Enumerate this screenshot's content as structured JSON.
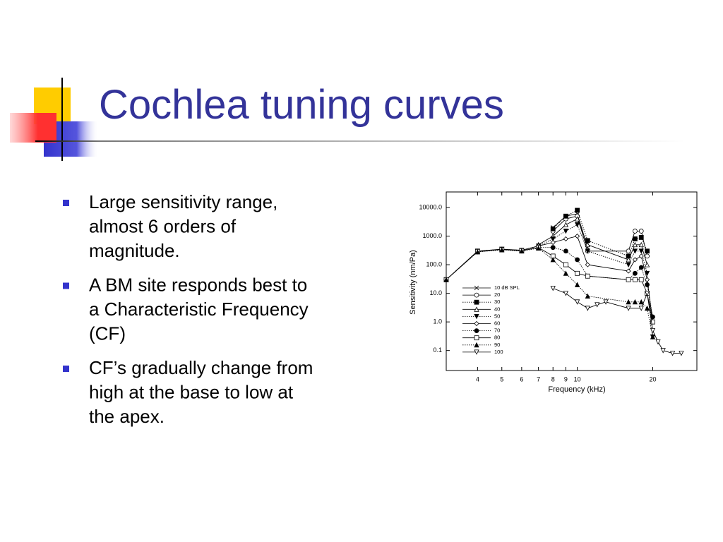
{
  "slide": {
    "title": "Cochlea tuning curves",
    "bullets": [
      [
        "Large sensitivity range,",
        "almost 6 orders of",
        "magnitude."
      ],
      [
        "A BM site responds best to",
        "a Characteristic Frequency",
        "(CF)"
      ],
      [
        "CF’s gradually change from",
        "high at the base to low at",
        "the apex."
      ]
    ]
  },
  "chart_data": {
    "type": "line",
    "x_label": "Frequency (kHz)",
    "y_label": "Sensitivity (nm/Pa)",
    "xlog": true,
    "ylog": true,
    "xlim": [
      3,
      30
    ],
    "ylim": [
      0.02,
      35000
    ],
    "xticks": [
      4,
      5,
      6,
      7,
      8,
      9,
      10,
      20
    ],
    "yticks": [
      {
        "value": 10000,
        "label": "10000.0"
      },
      {
        "value": 1000,
        "label": "1000.0"
      },
      {
        "value": 100,
        "label": "100.0"
      },
      {
        "value": 10,
        "label": "10.0"
      },
      {
        "value": 1,
        "label": "1.0"
      },
      {
        "value": 0.1,
        "label": "0.1"
      }
    ],
    "series": [
      {
        "name": "10 dB SPL",
        "marker": "x",
        "dash": "solid",
        "x": [
          8,
          9,
          10,
          11
        ],
        "values": [
          2000,
          5000,
          6000,
          400
        ]
      },
      {
        "name": "20",
        "marker": "circle-open",
        "dash": "solid",
        "x": [
          8,
          9,
          10,
          11,
          16,
          17,
          18,
          19
        ],
        "values": [
          1500,
          4000,
          5000,
          300,
          300,
          1500,
          1500,
          200
        ]
      },
      {
        "name": "30",
        "marker": "square-filled",
        "dash": "dotted",
        "x": [
          8,
          9,
          10,
          11,
          16,
          17,
          18,
          19
        ],
        "values": [
          1800,
          5000,
          8000,
          700,
          200,
          800,
          900,
          300
        ]
      },
      {
        "name": "40",
        "marker": "triangle-open",
        "dash": "solid",
        "x": [
          7,
          8,
          9,
          10,
          11,
          16,
          17,
          18,
          19
        ],
        "values": [
          500,
          1000,
          2500,
          4000,
          500,
          150,
          500,
          500,
          100
        ]
      },
      {
        "name": "50",
        "marker": "triangle-down-filled",
        "dash": "dotted",
        "x": [
          3,
          4,
          5,
          6,
          7,
          8,
          9,
          10,
          11,
          16,
          17,
          18,
          19,
          20
        ],
        "values": [
          30,
          300,
          350,
          320,
          450,
          800,
          1500,
          2500,
          300,
          100,
          300,
          300,
          50,
          0.3
        ]
      },
      {
        "name": "60",
        "marker": "diamond-open",
        "dash": "solid",
        "x": [
          3,
          4,
          5,
          6,
          7,
          8,
          9,
          10,
          11,
          16,
          17,
          18,
          19,
          20
        ],
        "values": [
          30,
          300,
          350,
          320,
          450,
          600,
          800,
          1000,
          100,
          60,
          150,
          200,
          30,
          1
        ]
      },
      {
        "name": "70",
        "marker": "circle-filled",
        "dash": "dotted",
        "x": [
          3,
          4,
          5,
          6,
          7,
          8,
          9,
          10,
          11,
          16,
          17,
          18,
          19,
          20
        ],
        "values": [
          30,
          280,
          340,
          300,
          400,
          400,
          300,
          150,
          40,
          30,
          50,
          80,
          20,
          1.5
        ]
      },
      {
        "name": "80",
        "marker": "square-open",
        "dash": "solid",
        "x": [
          3,
          4,
          5,
          6,
          7,
          8,
          9,
          10,
          11,
          16,
          17,
          18,
          19,
          20
        ],
        "values": [
          30,
          290,
          340,
          310,
          400,
          200,
          100,
          50,
          40,
          30,
          30,
          30,
          10,
          1
        ]
      },
      {
        "name": "90",
        "marker": "triangle-filled",
        "dash": "dotted",
        "x": [
          3,
          4,
          5,
          6,
          7,
          8,
          9,
          10,
          11,
          16,
          17,
          18,
          19,
          20
        ],
        "values": [
          30,
          280,
          330,
          300,
          380,
          150,
          50,
          20,
          8,
          5,
          5,
          5,
          3,
          0.3
        ]
      },
      {
        "name": "100",
        "marker": "triangle-down-open",
        "dash": "solid",
        "x": [
          8,
          9,
          10,
          11,
          12,
          13,
          16,
          18,
          19,
          20,
          21,
          22,
          24,
          26
        ],
        "values": [
          15,
          10,
          5,
          3,
          4,
          5,
          3,
          3,
          10,
          0.5,
          0.2,
          0.1,
          0.08,
          0.08
        ]
      }
    ]
  }
}
